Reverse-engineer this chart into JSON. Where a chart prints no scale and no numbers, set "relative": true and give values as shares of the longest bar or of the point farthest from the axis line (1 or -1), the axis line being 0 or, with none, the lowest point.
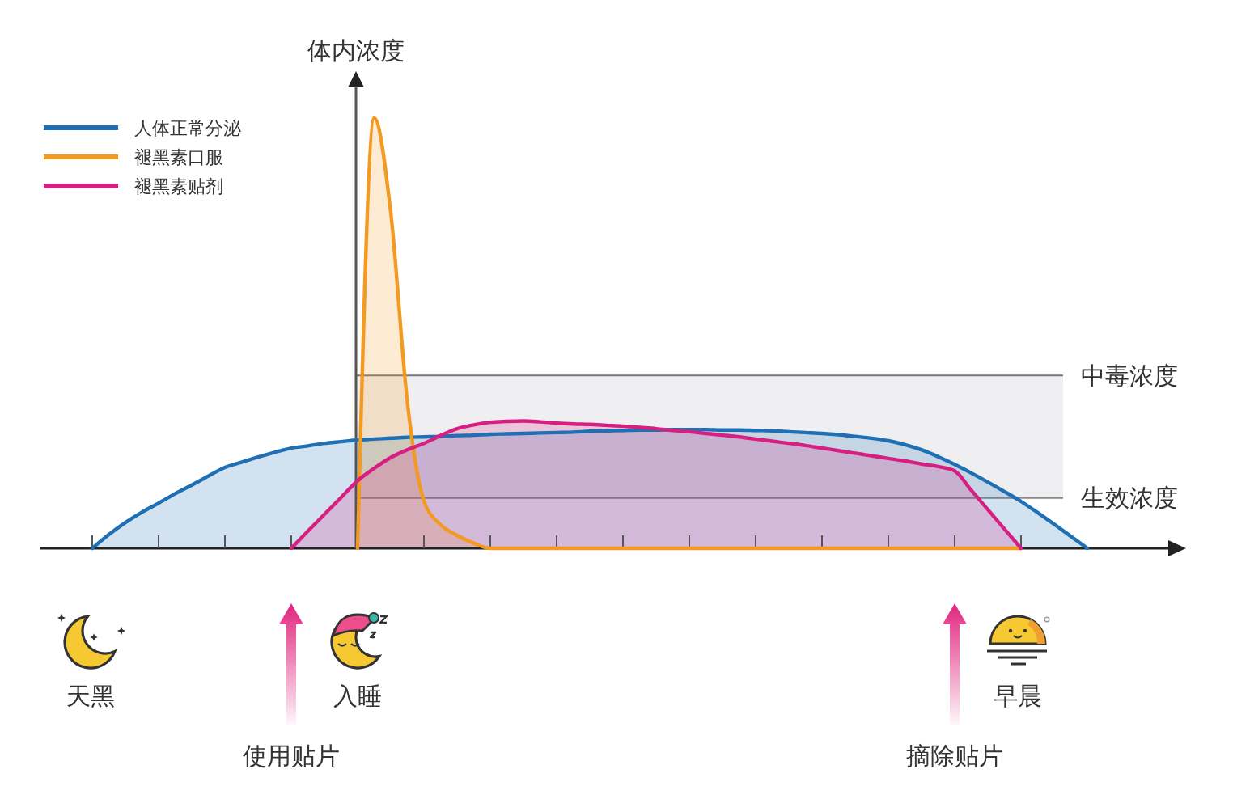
{
  "chart_data": {
    "type": "area",
    "ylabel": "体内浓度",
    "relative": true,
    "legend": "top left",
    "categories": [
      null,
      null,
      null,
      null,
      null,
      null,
      null,
      null,
      null,
      null,
      null,
      null,
      null,
      null,
      null,
      null,
      null,
      null,
      null,
      null,
      null,
      null,
      null,
      null,
      null,
      null,
      null,
      null,
      null,
      null,
      null,
      null,
      null,
      null,
      null,
      null,
      null,
      null,
      null,
      null,
      null,
      null,
      null,
      null,
      null,
      null,
      null,
      null,
      null,
      null,
      null,
      null,
      null,
      null,
      null,
      null,
      null,
      null,
      null,
      null,
      null
    ],
    "series": [
      {
        "name": "人体正常分泌",
        "color": "#1f6fb4",
        "values": [
          0,
          0.032,
          0.06,
          0.084,
          0.105,
          0.127,
          0.147,
          0.168,
          0.188,
          0.2,
          0.212,
          0.223,
          0.233,
          0.238,
          0.244,
          0.248,
          0.252,
          0.254,
          0.256,
          0.258,
          0.259,
          0.26,
          0.262,
          0.263,
          0.265,
          0.266,
          0.267,
          0.268,
          0.269,
          0.27,
          0.272,
          0.273,
          0.274,
          0.275,
          0.275,
          0.276,
          0.276,
          0.276,
          0.275,
          0.275,
          0.274,
          0.273,
          0.271,
          0.269,
          0.267,
          0.264,
          0.26,
          0.256,
          0.25,
          0.241,
          0.229,
          0.213,
          0.195,
          0.175,
          0.154,
          0.132,
          0.109,
          0.083,
          0.056,
          0.028,
          0
        ]
      },
      {
        "name": "褪黑素口服",
        "color": "#f39a22",
        "values": [
          null,
          null,
          null,
          null,
          null,
          null,
          null,
          null,
          null,
          null,
          null,
          null,
          null,
          null,
          null,
          null,
          0,
          1,
          0.78,
          0.34,
          0.11,
          0.055,
          0.03,
          0.012,
          0,
          0,
          0,
          0,
          0,
          0,
          0,
          0,
          0,
          0,
          0,
          0,
          0,
          0,
          0,
          0,
          0,
          0,
          0,
          0,
          0,
          0,
          0,
          0,
          0,
          0,
          0,
          0,
          0,
          0,
          0,
          0,
          0,
          null,
          null,
          null,
          null
        ]
      },
      {
        "name": "褪黑素贴剂",
        "color": "#d61f80",
        "values": [
          null,
          null,
          null,
          null,
          null,
          null,
          null,
          null,
          null,
          null,
          null,
          null,
          0,
          0.04,
          0.079,
          0.118,
          0.157,
          0.186,
          0.211,
          0.229,
          0.244,
          0.262,
          0.278,
          0.287,
          0.293,
          0.295,
          0.296,
          0.294,
          0.291,
          0.289,
          0.288,
          0.286,
          0.284,
          0.281,
          0.278,
          0.274,
          0.271,
          0.267,
          0.263,
          0.259,
          0.254,
          0.249,
          0.244,
          0.239,
          0.233,
          0.227,
          0.221,
          0.215,
          0.209,
          0.203,
          0.196,
          0.19,
          0.18,
          0.135,
          0.09,
          0.045,
          0,
          null,
          null,
          null,
          null
        ]
      }
    ],
    "ref_lines": [
      {
        "axis": "y",
        "value": 0.402,
        "label": "中毒浓度",
        "color": "#777777"
      },
      {
        "axis": "y",
        "value": 0.117,
        "label": "生效浓度",
        "color": "#888888"
      }
    ],
    "bands": [
      {
        "axis": "y",
        "from": 0.117,
        "to": 0.402,
        "color": "#efeff1"
      }
    ],
    "annotations": [
      "天黑",
      "入睡",
      "早晨",
      "使用贴片",
      "摘除贴片"
    ]
  }
}
